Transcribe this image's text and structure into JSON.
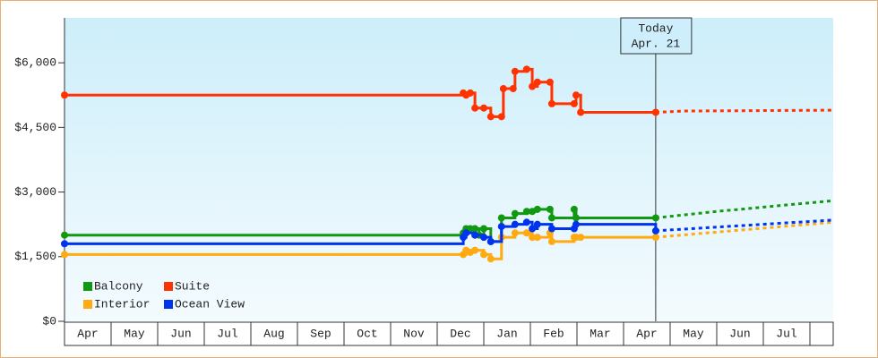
{
  "chart_data": {
    "type": "step-line",
    "xlim": [
      0,
      16.5
    ],
    "xticks": [
      {
        "value": 0.5,
        "label": "Apr"
      },
      {
        "value": 1.5,
        "label": "May"
      },
      {
        "value": 2.5,
        "label": "Jun"
      },
      {
        "value": 3.5,
        "label": "Jul"
      },
      {
        "value": 4.5,
        "label": "Aug"
      },
      {
        "value": 5.5,
        "label": "Sep"
      },
      {
        "value": 6.5,
        "label": "Oct"
      },
      {
        "value": 7.5,
        "label": "Nov"
      },
      {
        "value": 8.5,
        "label": "Dec"
      },
      {
        "value": 9.5,
        "label": "Jan"
      },
      {
        "value": 10.5,
        "label": "Feb"
      },
      {
        "value": 11.5,
        "label": "Mar"
      },
      {
        "value": 12.5,
        "label": "Apr"
      },
      {
        "value": 13.5,
        "label": "May"
      },
      {
        "value": 14.5,
        "label": "Jun"
      },
      {
        "value": 15.5,
        "label": "Jul"
      }
    ],
    "ylim": [
      0,
      7000
    ],
    "yticks": [
      {
        "value": 0,
        "label": "$0"
      },
      {
        "value": 1500,
        "label": "$1,500"
      },
      {
        "value": 3000,
        "label": "$3,000"
      },
      {
        "value": 4500,
        "label": "$4,500"
      },
      {
        "value": 6000,
        "label": "$6,000"
      }
    ],
    "today": {
      "x": 12.69,
      "label": "Today",
      "date": "Apr. 21"
    },
    "legend": "bottom-left",
    "series": [
      {
        "name": "Balcony",
        "color": "#119911",
        "x": [
          0,
          8.56,
          8.62,
          8.71,
          8.81,
          8.9,
          9.0,
          9.15,
          9.38,
          9.67,
          9.92,
          10.04,
          10.15,
          10.42,
          10.46,
          10.94,
          10.98,
          12.69
        ],
        "values": [
          2000,
          2050,
          2150,
          2150,
          2150,
          2000,
          2150,
          1850,
          2400,
          2500,
          2550,
          2550,
          2600,
          2600,
          2400,
          2600,
          2400,
          2400
        ],
        "forecast_x": [
          12.69,
          14,
          16.5
        ],
        "forecast_values": [
          2400,
          2550,
          2800
        ]
      },
      {
        "name": "Suite",
        "color": "#ff3300",
        "x": [
          0,
          8.56,
          8.62,
          8.71,
          8.81,
          9.0,
          9.15,
          9.38,
          9.42,
          9.63,
          9.67,
          9.92,
          10.04,
          10.15,
          10.42,
          10.46,
          10.94,
          10.98,
          11.08,
          12.69
        ],
        "values": [
          5250,
          5300,
          5250,
          5300,
          4950,
          4950,
          4750,
          4750,
          5400,
          5400,
          5800,
          5850,
          5450,
          5550,
          5550,
          5050,
          5050,
          5250,
          4850,
          4850
        ],
        "forecast_x": [
          12.69,
          13.3,
          16.5
        ],
        "forecast_values": [
          4850,
          4880,
          4900
        ]
      },
      {
        "name": "Interior",
        "color": "#ffaa11",
        "x": [
          0,
          8.56,
          8.62,
          8.71,
          8.81,
          9.0,
          9.15,
          9.38,
          9.67,
          9.92,
          10.04,
          10.15,
          10.42,
          10.46,
          10.94,
          10.98,
          11.08,
          12.69
        ],
        "values": [
          1550,
          1550,
          1650,
          1600,
          1650,
          1550,
          1450,
          1950,
          2050,
          2050,
          1950,
          1950,
          2050,
          1850,
          1950,
          1950,
          1950,
          1950
        ],
        "forecast_x": [
          12.69,
          16.5
        ],
        "forecast_values": [
          1950,
          2300
        ]
      },
      {
        "name": "Ocean View",
        "color": "#0033ee",
        "x": [
          0,
          8.56,
          8.62,
          8.81,
          9.0,
          9.15,
          9.38,
          9.67,
          9.92,
          10.04,
          10.15,
          10.46,
          10.94,
          10.98,
          12.69
        ],
        "values": [
          1800,
          1950,
          2050,
          2000,
          1950,
          1850,
          2200,
          2250,
          2300,
          2150,
          2250,
          2150,
          2150,
          2250,
          2100
        ],
        "forecast_x": [
          12.69,
          16.5
        ],
        "forecast_values": [
          2100,
          2350
        ]
      }
    ]
  }
}
